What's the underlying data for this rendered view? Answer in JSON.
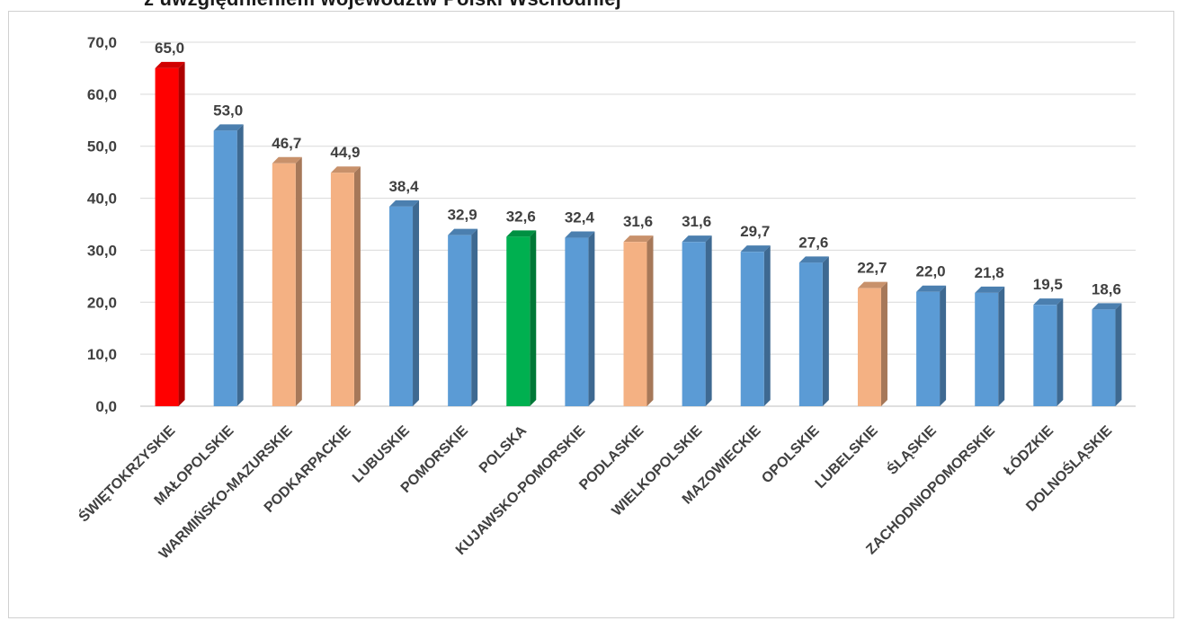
{
  "title": "z uwzględnieniem województw Polski Wschodniej",
  "chart_data": {
    "type": "bar",
    "title": "z uwzględnieniem województw Polski Wschodniej",
    "xlabel": "",
    "ylabel": "",
    "ylim": [
      0,
      70
    ],
    "yticks": [
      "0,0",
      "10,0",
      "20,0",
      "30,0",
      "40,0",
      "50,0",
      "60,0",
      "70,0"
    ],
    "grid": true,
    "legend": "none",
    "categories": [
      "ŚWIĘTOKRZYSKIE",
      "MAŁOPOLSKIE",
      "WARMIŃSKO-MAZURSKIE",
      "PODKARPACKIE",
      "LUBUSKIE",
      "POMORSKIE",
      "POLSKA",
      "KUJAWSKO-POMORSKIE",
      "PODLASKIE",
      "WIELKOPOLSKIE",
      "MAZOWIECKIE",
      "OPOLSKIE",
      "LUBELSKIE",
      "ŚLĄSKIE",
      "ZACHODNIOPOMORSKIE",
      "ŁÓDZKIE",
      "DOLNOŚLĄSKIE"
    ],
    "values": [
      65.0,
      53.0,
      46.7,
      44.9,
      38.4,
      32.9,
      32.6,
      32.4,
      31.6,
      31.6,
      29.7,
      27.6,
      22.7,
      22.0,
      21.8,
      19.5,
      18.6
    ],
    "value_labels": [
      "65,0",
      "53,0",
      "46,7",
      "44,9",
      "38,4",
      "32,9",
      "32,6",
      "32,4",
      "31,6",
      "31,6",
      "29,7",
      "27,6",
      "22,7",
      "22,0",
      "21,8",
      "19,5",
      "18,6"
    ],
    "colors": [
      "#ff0000",
      "#5b9bd5",
      "#f4b183",
      "#f4b183",
      "#5b9bd5",
      "#5b9bd5",
      "#00b050",
      "#5b9bd5",
      "#f4b183",
      "#5b9bd5",
      "#5b9bd5",
      "#5b9bd5",
      "#f4b183",
      "#5b9bd5",
      "#5b9bd5",
      "#5b9bd5",
      "#5b9bd5"
    ]
  }
}
